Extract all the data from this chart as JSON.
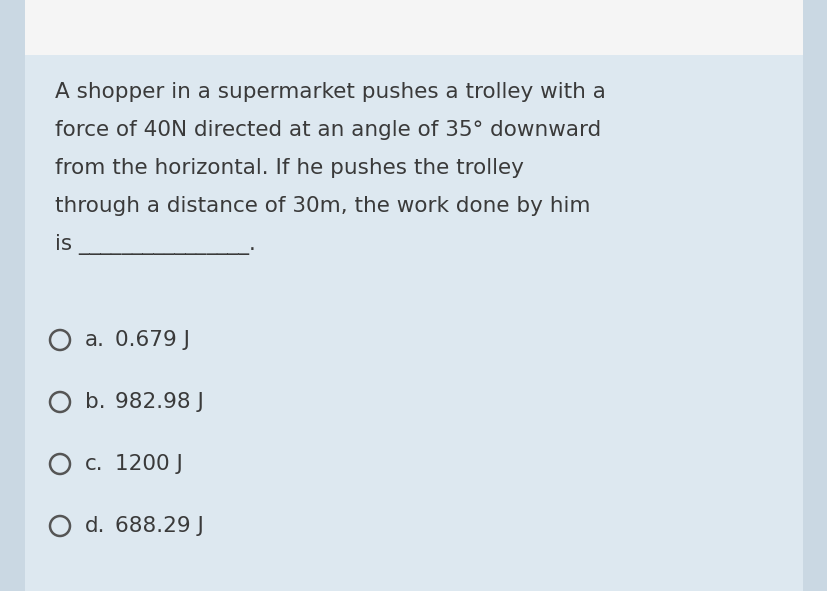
{
  "background_color": "#dde8f0",
  "top_bar_color": "#f5f5f5",
  "question_text_lines": [
    "A shopper in a supermarket pushes a trolley with a",
    "force of 40N directed at an angle of 35° downward",
    "from the horizontal. If he pushes the trolley",
    "through a distance of 30m, the work done by him",
    "is ________________."
  ],
  "options": [
    {
      "label": "a.",
      "text": "0.679 J"
    },
    {
      "label": "b.",
      "text": "982.98 J"
    },
    {
      "label": "c.",
      "text": "1200 J"
    },
    {
      "label": "d.",
      "text": "688.29 J"
    }
  ],
  "text_color": "#3a3a3a",
  "question_fontsize": 15.5,
  "option_fontsize": 15.5,
  "circle_color": "#555555",
  "fig_width": 8.28,
  "fig_height": 5.91
}
